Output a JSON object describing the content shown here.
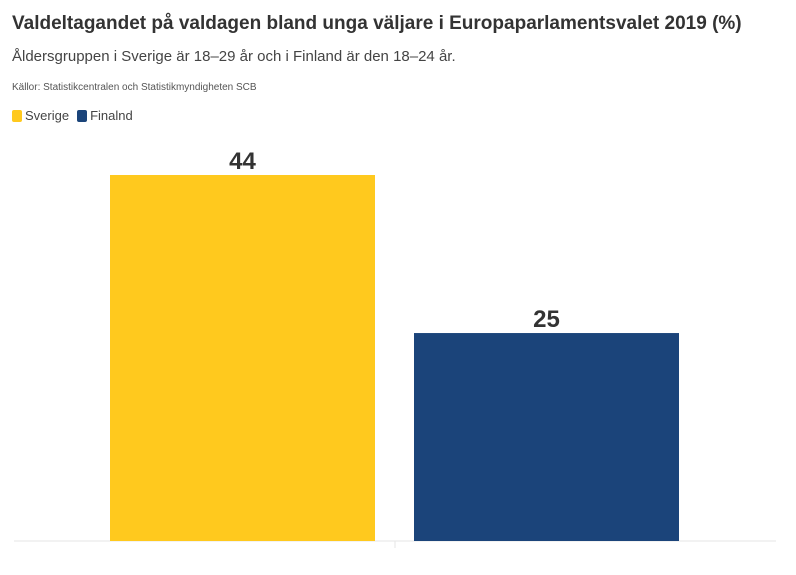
{
  "header": {
    "title": "Valdeltagandet på valdagen bland unga väljare i Europaparlamentsvalet 2019 (%)",
    "subtitle": "Åldersgruppen i Sverige är 18–29 år och i Finland är den 18–24 år.",
    "source": "Källor: Statistikcentralen och Statistikmyndigheten SCB"
  },
  "legend": [
    {
      "name": "Sverige",
      "color": "#ffc91e"
    },
    {
      "name": "Finalnd",
      "color": "#1b447a"
    }
  ],
  "chart_data": {
    "type": "bar",
    "title": "Valdeltagandet på valdagen bland unga väljare i Europaparlamentsvalet 2019 (%)",
    "subtitle": "Åldersgruppen i Sverige är 18–29 år och i Finland är den 18–24 år.",
    "categories": [
      "Sverige",
      "Finalnd"
    ],
    "values": [
      44,
      25
    ],
    "colors": [
      "#ffc91e",
      "#1b447a"
    ],
    "ylim": [
      0,
      44
    ],
    "grid": false,
    "legend_position": "top-left",
    "xlabel": "",
    "ylabel": ""
  }
}
